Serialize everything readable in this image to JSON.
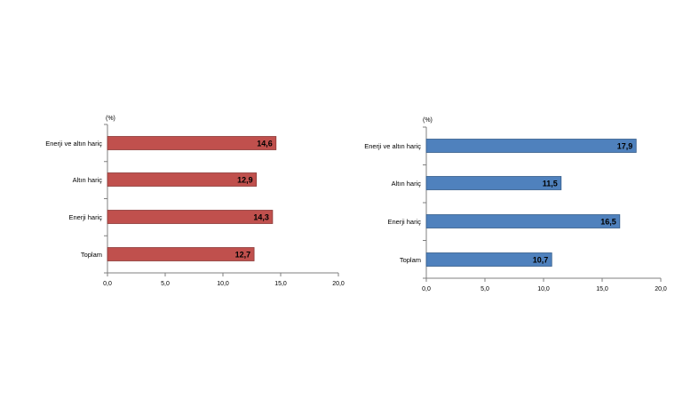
{
  "chart_data": [
    {
      "type": "bar",
      "orientation": "horizontal",
      "unit_label": "(%)",
      "categories": [
        "Enerji ve altın hariç",
        "Altın hariç",
        "Enerji hariç",
        "Toplam"
      ],
      "values": [
        14.6,
        12.9,
        14.3,
        12.7
      ],
      "value_labels": [
        "14,6",
        "12,9",
        "14,3",
        "12,7"
      ],
      "xlim": [
        0,
        20
      ],
      "x_ticks": [
        "0,0",
        "5,0",
        "10,0",
        "15,0",
        "20,0"
      ],
      "grid": false,
      "color": "#c0504d"
    },
    {
      "type": "bar",
      "orientation": "horizontal",
      "unit_label": "(%)",
      "categories": [
        "Enerji ve altın hariç",
        "Altın hariç",
        "Enerji hariç",
        "Toplam"
      ],
      "values": [
        17.9,
        11.5,
        16.5,
        10.7
      ],
      "value_labels": [
        "17,9",
        "11,5",
        "16,5",
        "10,7"
      ],
      "xlim": [
        0,
        20
      ],
      "x_ticks": [
        "0,0",
        "5,0",
        "10,0",
        "15,0",
        "20,0"
      ],
      "grid": false,
      "color": "#4f81bd"
    }
  ]
}
